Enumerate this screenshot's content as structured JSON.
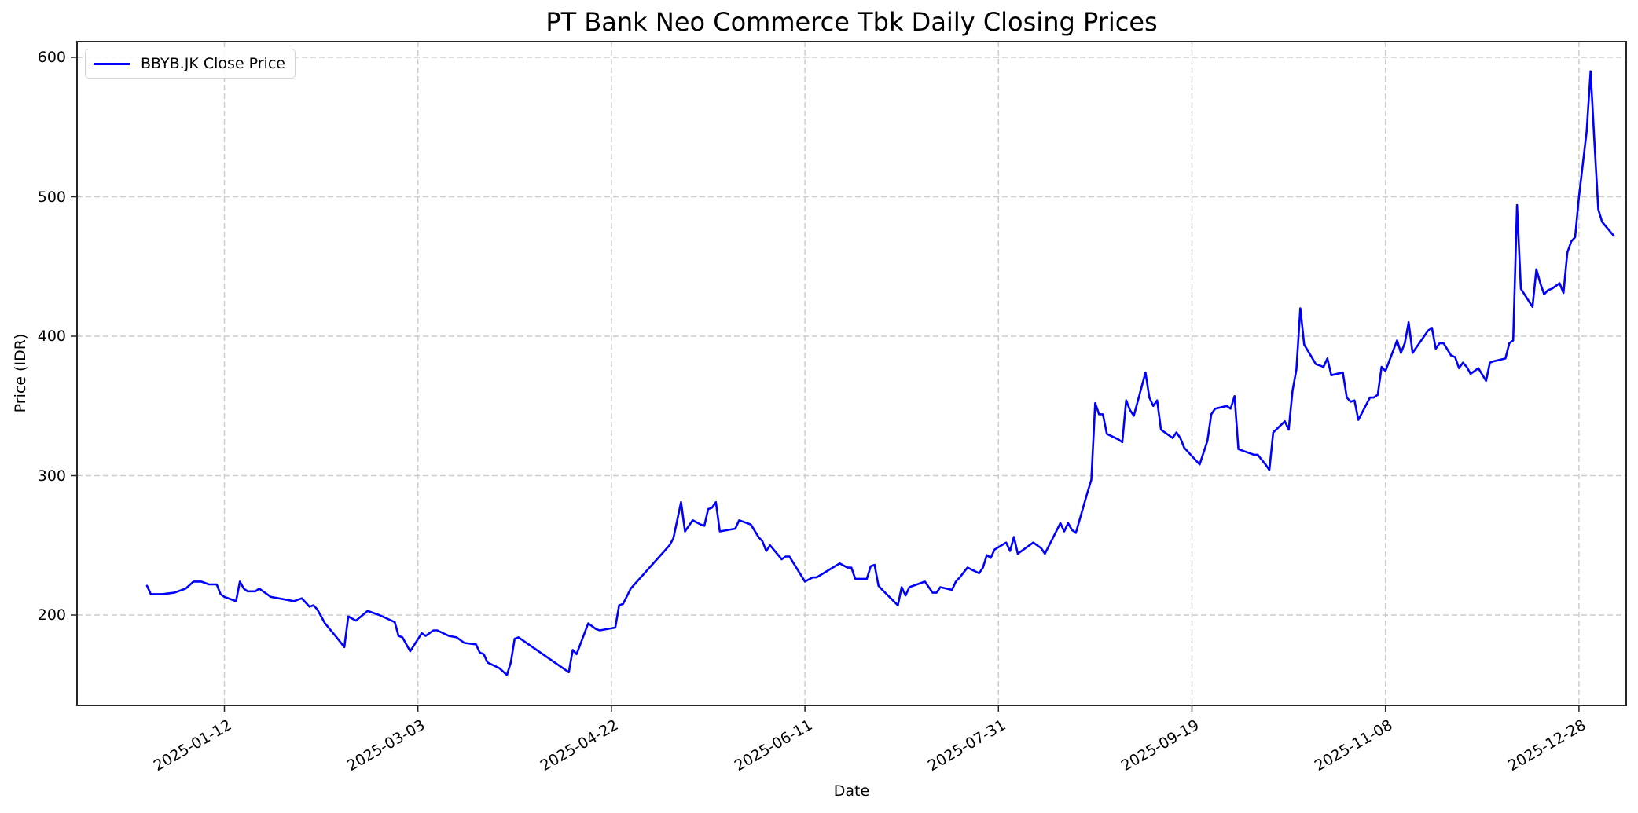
{
  "chart_data": {
    "type": "line",
    "title": "PT Bank Neo Commerce Tbk Daily Closing Prices",
    "xlabel": "Date",
    "ylabel": "Price (IDR)",
    "ylim": [
      135,
      611
    ],
    "xlim": [
      "2024-12-23",
      "2026-01-10"
    ],
    "grid": true,
    "legend_position": "upper left",
    "x_ticks": [
      "2025-01-12",
      "2025-03-03",
      "2025-04-22",
      "2025-06-11",
      "2025-07-31",
      "2025-09-19",
      "2025-11-08",
      "2025-12-28"
    ],
    "y_ticks": [
      200,
      300,
      400,
      500,
      600
    ],
    "series": [
      {
        "name": "BBYB.JK Close Price",
        "color": "#0000ff",
        "points": [
          [
            "2024-12-23",
            221
          ],
          [
            "2024-12-24",
            215
          ],
          [
            "2024-12-27",
            215
          ],
          [
            "2024-12-30",
            216
          ],
          [
            "2025-01-02",
            219
          ],
          [
            "2025-01-04",
            224
          ],
          [
            "2025-01-06",
            224
          ],
          [
            "2025-01-08",
            222
          ],
          [
            "2025-01-10",
            222
          ],
          [
            "2025-01-11",
            215
          ],
          [
            "2025-01-12",
            213
          ],
          [
            "2025-01-14",
            211
          ],
          [
            "2025-01-15",
            210
          ],
          [
            "2025-01-16",
            224
          ],
          [
            "2025-01-17",
            219
          ],
          [
            "2025-01-18",
            217
          ],
          [
            "2025-01-20",
            217
          ],
          [
            "2025-01-21",
            219
          ],
          [
            "2025-01-24",
            213
          ],
          [
            "2025-01-26",
            212
          ],
          [
            "2025-01-30",
            210
          ],
          [
            "2025-02-01",
            212
          ],
          [
            "2025-02-03",
            206
          ],
          [
            "2025-02-04",
            207
          ],
          [
            "2025-02-05",
            204
          ],
          [
            "2025-02-07",
            194
          ],
          [
            "2025-02-10",
            184
          ],
          [
            "2025-02-12",
            177
          ],
          [
            "2025-02-13",
            199
          ],
          [
            "2025-02-15",
            196
          ],
          [
            "2025-02-18",
            203
          ],
          [
            "2025-02-19",
            202
          ],
          [
            "2025-02-21",
            200
          ],
          [
            "2025-02-25",
            195
          ],
          [
            "2025-02-26",
            185
          ],
          [
            "2025-02-27",
            184
          ],
          [
            "2025-03-01",
            174
          ],
          [
            "2025-03-04",
            187
          ],
          [
            "2025-03-05",
            185
          ],
          [
            "2025-03-07",
            189
          ],
          [
            "2025-03-08",
            189
          ],
          [
            "2025-03-11",
            185
          ],
          [
            "2025-03-13",
            184
          ],
          [
            "2025-03-14",
            182
          ],
          [
            "2025-03-15",
            180
          ],
          [
            "2025-03-18",
            179
          ],
          [
            "2025-03-19",
            173
          ],
          [
            "2025-03-20",
            172
          ],
          [
            "2025-03-21",
            166
          ],
          [
            "2025-03-24",
            162
          ],
          [
            "2025-03-26",
            157
          ],
          [
            "2025-03-27",
            166
          ],
          [
            "2025-03-28",
            183
          ],
          [
            "2025-03-29",
            184
          ],
          [
            "2025-04-11",
            159
          ],
          [
            "2025-04-12",
            175
          ],
          [
            "2025-04-13",
            172
          ],
          [
            "2025-04-16",
            194
          ],
          [
            "2025-04-18",
            190
          ],
          [
            "2025-04-19",
            189
          ],
          [
            "2025-04-23",
            191
          ],
          [
            "2025-04-24",
            207
          ],
          [
            "2025-04-25",
            208
          ],
          [
            "2025-04-27",
            219
          ],
          [
            "2025-05-07",
            250
          ],
          [
            "2025-05-08",
            255
          ],
          [
            "2025-05-10",
            281
          ],
          [
            "2025-05-11",
            260
          ],
          [
            "2025-05-13",
            268
          ],
          [
            "2025-05-15",
            265
          ],
          [
            "2025-05-16",
            264
          ],
          [
            "2025-05-17",
            276
          ],
          [
            "2025-05-18",
            277
          ],
          [
            "2025-05-19",
            281
          ],
          [
            "2025-05-20",
            260
          ],
          [
            "2025-05-24",
            262
          ],
          [
            "2025-05-25",
            268
          ],
          [
            "2025-05-28",
            265
          ],
          [
            "2025-05-30",
            256
          ],
          [
            "2025-05-31",
            253
          ],
          [
            "2025-06-01",
            246
          ],
          [
            "2025-06-02",
            250
          ],
          [
            "2025-06-05",
            240
          ],
          [
            "2025-06-06",
            242
          ],
          [
            "2025-06-07",
            242
          ],
          [
            "2025-06-11",
            224
          ],
          [
            "2025-06-13",
            227
          ],
          [
            "2025-06-14",
            227
          ],
          [
            "2025-06-20",
            237
          ],
          [
            "2025-06-22",
            234
          ],
          [
            "2025-06-23",
            234
          ],
          [
            "2025-06-24",
            226
          ],
          [
            "2025-06-27",
            226
          ],
          [
            "2025-06-28",
            235
          ],
          [
            "2025-06-29",
            236
          ],
          [
            "2025-06-30",
            221
          ],
          [
            "2025-07-01",
            218
          ],
          [
            "2025-07-05",
            207
          ],
          [
            "2025-07-06",
            220
          ],
          [
            "2025-07-07",
            214
          ],
          [
            "2025-07-08",
            220
          ],
          [
            "2025-07-12",
            224
          ],
          [
            "2025-07-14",
            216
          ],
          [
            "2025-07-15",
            216
          ],
          [
            "2025-07-16",
            220
          ],
          [
            "2025-07-19",
            218
          ],
          [
            "2025-07-20",
            224
          ],
          [
            "2025-07-21",
            227
          ],
          [
            "2025-07-23",
            234
          ],
          [
            "2025-07-26",
            230
          ],
          [
            "2025-07-27",
            234
          ],
          [
            "2025-07-28",
            243
          ],
          [
            "2025-07-29",
            241
          ],
          [
            "2025-07-30",
            247
          ],
          [
            "2025-08-02",
            252
          ],
          [
            "2025-08-03",
            246
          ],
          [
            "2025-08-04",
            256
          ],
          [
            "2025-08-05",
            244
          ],
          [
            "2025-08-09",
            252
          ],
          [
            "2025-08-11",
            248
          ],
          [
            "2025-08-12",
            244
          ],
          [
            "2025-08-16",
            266
          ],
          [
            "2025-08-17",
            260
          ],
          [
            "2025-08-18",
            266
          ],
          [
            "2025-08-19",
            261
          ],
          [
            "2025-08-20",
            259
          ],
          [
            "2025-08-23",
            288
          ],
          [
            "2025-08-24",
            297
          ],
          [
            "2025-08-25",
            352
          ],
          [
            "2025-08-26",
            344
          ],
          [
            "2025-08-27",
            344
          ],
          [
            "2025-08-28",
            330
          ],
          [
            "2025-08-31",
            326
          ],
          [
            "2025-09-01",
            324
          ],
          [
            "2025-09-02",
            354
          ],
          [
            "2025-09-03",
            347
          ],
          [
            "2025-09-04",
            343
          ],
          [
            "2025-09-07",
            374
          ],
          [
            "2025-09-08",
            356
          ],
          [
            "2025-09-09",
            350
          ],
          [
            "2025-09-10",
            354
          ],
          [
            "2025-09-11",
            333
          ],
          [
            "2025-09-14",
            327
          ],
          [
            "2025-09-15",
            331
          ],
          [
            "2025-09-16",
            327
          ],
          [
            "2025-09-17",
            320
          ],
          [
            "2025-09-21",
            308
          ],
          [
            "2025-09-23",
            325
          ],
          [
            "2025-09-24",
            344
          ],
          [
            "2025-09-25",
            348
          ],
          [
            "2025-09-28",
            350
          ],
          [
            "2025-09-29",
            348
          ],
          [
            "2025-09-30",
            357
          ],
          [
            "2025-10-01",
            319
          ],
          [
            "2025-10-05",
            315
          ],
          [
            "2025-10-06",
            315
          ],
          [
            "2025-10-08",
            308
          ],
          [
            "2025-10-09",
            304
          ],
          [
            "2025-10-10",
            331
          ],
          [
            "2025-10-13",
            339
          ],
          [
            "2025-10-14",
            333
          ],
          [
            "2025-10-15",
            361
          ],
          [
            "2025-10-16",
            376
          ],
          [
            "2025-10-17",
            420
          ],
          [
            "2025-10-18",
            394
          ],
          [
            "2025-10-21",
            380
          ],
          [
            "2025-10-22",
            379
          ],
          [
            "2025-10-23",
            378
          ],
          [
            "2025-10-24",
            384
          ],
          [
            "2025-10-25",
            372
          ],
          [
            "2025-10-28",
            374
          ],
          [
            "2025-10-29",
            356
          ],
          [
            "2025-10-30",
            353
          ],
          [
            "2025-10-31",
            354
          ],
          [
            "2025-11-01",
            340
          ],
          [
            "2025-11-04",
            356
          ],
          [
            "2025-11-05",
            356
          ],
          [
            "2025-11-06",
            358
          ],
          [
            "2025-11-07",
            378
          ],
          [
            "2025-11-08",
            375
          ],
          [
            "2025-11-11",
            397
          ],
          [
            "2025-11-12",
            388
          ],
          [
            "2025-11-13",
            395
          ],
          [
            "2025-11-14",
            410
          ],
          [
            "2025-11-15",
            388
          ],
          [
            "2025-11-19",
            404
          ],
          [
            "2025-11-20",
            406
          ],
          [
            "2025-11-21",
            391
          ],
          [
            "2025-11-22",
            395
          ],
          [
            "2025-11-23",
            395
          ],
          [
            "2025-11-25",
            386
          ],
          [
            "2025-11-26",
            385
          ],
          [
            "2025-11-27",
            377
          ],
          [
            "2025-11-28",
            381
          ],
          [
            "2025-11-29",
            378
          ],
          [
            "2025-11-30",
            373
          ],
          [
            "2025-12-02",
            377
          ],
          [
            "2025-12-04",
            368
          ],
          [
            "2025-12-05",
            381
          ],
          [
            "2025-12-06",
            382
          ],
          [
            "2025-12-09",
            384
          ],
          [
            "2025-12-10",
            395
          ],
          [
            "2025-12-11",
            397
          ],
          [
            "2025-12-12",
            494
          ],
          [
            "2025-12-13",
            434
          ],
          [
            "2025-12-16",
            421
          ],
          [
            "2025-12-17",
            448
          ],
          [
            "2025-12-18",
            438
          ],
          [
            "2025-12-19",
            430
          ],
          [
            "2025-12-20",
            433
          ],
          [
            "2025-12-21",
            434
          ],
          [
            "2025-12-23",
            438
          ],
          [
            "2025-12-24",
            431
          ],
          [
            "2025-12-25",
            460
          ],
          [
            "2025-12-26",
            468
          ],
          [
            "2025-12-27",
            471
          ],
          [
            "2025-12-28",
            500
          ],
          [
            "2025-12-30",
            547
          ],
          [
            "2025-12-31",
            590
          ],
          [
            "2026-01-01",
            539
          ],
          [
            "2026-01-02",
            491
          ],
          [
            "2026-01-03",
            482
          ],
          [
            "2026-01-06",
            472
          ]
        ]
      }
    ]
  }
}
